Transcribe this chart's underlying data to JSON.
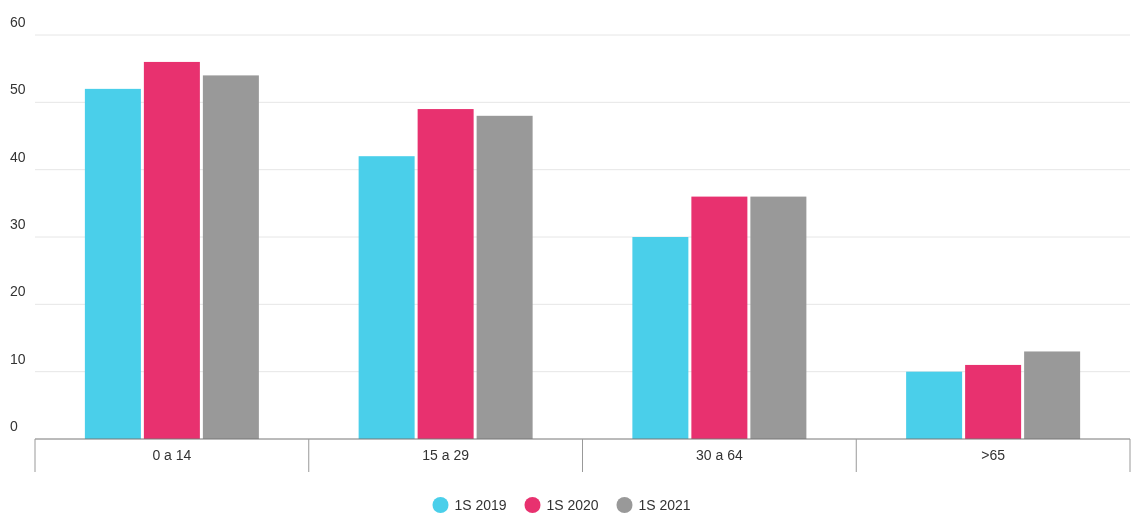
{
  "chart_data": {
    "type": "bar",
    "categories": [
      "0 a 14",
      "15 a 29",
      "30 a 64",
      ">65"
    ],
    "series": [
      {
        "name": "1S 2019",
        "color": "#4acfea",
        "values": [
          52,
          42,
          30,
          10
        ]
      },
      {
        "name": "1S 2020",
        "color": "#e8316f",
        "values": [
          56,
          49,
          36,
          11
        ]
      },
      {
        "name": "1S 2021",
        "color": "#999999",
        "values": [
          54,
          48,
          36,
          13
        ]
      }
    ],
    "ylim": [
      0,
      60
    ],
    "yticks": [
      0,
      10,
      20,
      30,
      40,
      50,
      60
    ],
    "grid": "y",
    "legend": "bottom"
  }
}
